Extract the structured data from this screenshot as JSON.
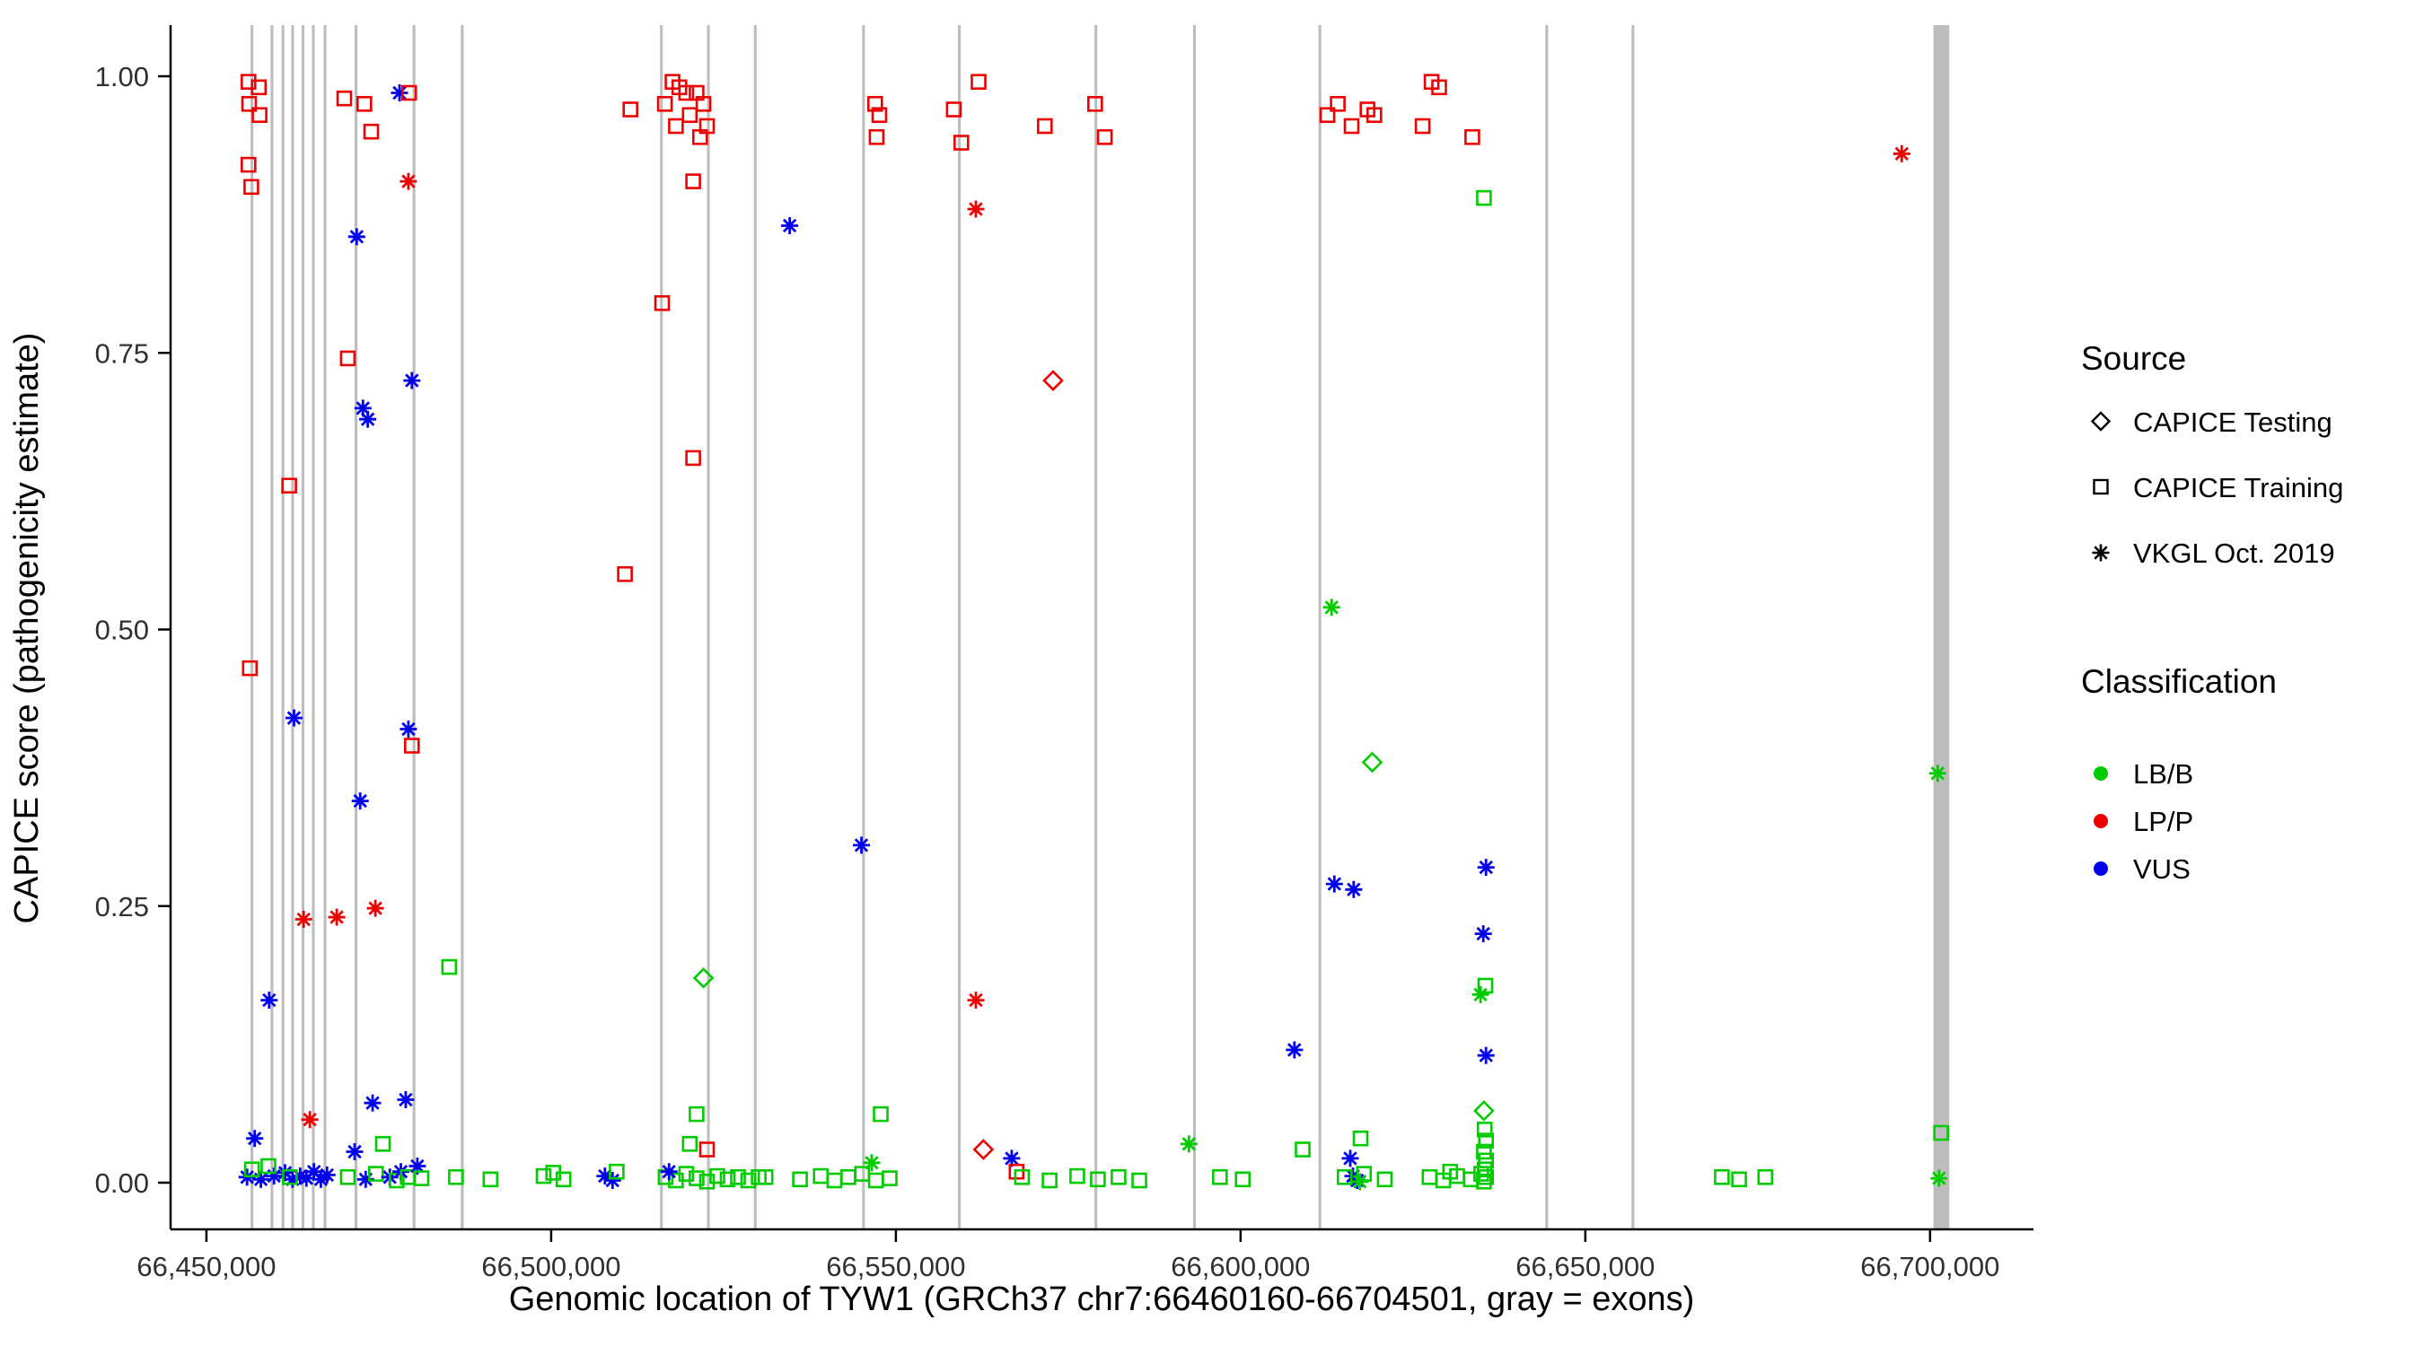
{
  "chart_data": {
    "type": "scatter",
    "title": "",
    "xlabel": "Genomic location of TYW1 (GRCh37 chr7:66460160-66704501, gray = exons)",
    "ylabel": "CAPICE score (pathogenicity estimate)",
    "xlim": [
      66444800,
      66715000
    ],
    "ylim": [
      0,
      1
    ],
    "grid": false,
    "legend_position": "right",
    "x_ticks": [
      {
        "value": 66450000,
        "label": "66,450,000"
      },
      {
        "value": 66500000,
        "label": "66,500,000"
      },
      {
        "value": 66550000,
        "label": "66,550,000"
      },
      {
        "value": 66600000,
        "label": "66,600,000"
      },
      {
        "value": 66650000,
        "label": "66,650,000"
      },
      {
        "value": 66700000,
        "label": "66,700,000"
      }
    ],
    "y_ticks": [
      {
        "value": 0.0,
        "label": "0.00"
      },
      {
        "value": 0.25,
        "label": "0.25"
      },
      {
        "value": 0.5,
        "label": "0.50"
      },
      {
        "value": 0.75,
        "label": "0.75"
      },
      {
        "value": 1.0,
        "label": "1.00"
      }
    ],
    "colors": {
      "LB/B": "#00CC00",
      "LP/P": "#EE0000",
      "VUS": "#0000EE"
    },
    "shapes": {
      "testing": "diamond",
      "training": "square",
      "vkgl": "asterisk"
    },
    "exon_color": "#BDBDBD",
    "exons": [
      [
        66456400,
        66456800
      ],
      [
        66459300,
        66459700
      ],
      [
        66460900,
        66461300
      ],
      [
        66462300,
        66462700
      ],
      [
        66463800,
        66464200
      ],
      [
        66465300,
        66465700
      ],
      [
        66467000,
        66467400
      ],
      [
        66471500,
        66471900
      ],
      [
        66479900,
        66480300
      ],
      [
        66486900,
        66487300
      ],
      [
        66515800,
        66516200
      ],
      [
        66522600,
        66523000
      ],
      [
        66529400,
        66529800
      ],
      [
        66545100,
        66545500
      ],
      [
        66559000,
        66559400
      ],
      [
        66578800,
        66579200
      ],
      [
        66593100,
        66593500
      ],
      [
        66611300,
        66611700
      ],
      [
        66644200,
        66644600
      ],
      [
        66656700,
        66657100
      ],
      [
        66700500,
        66702800
      ]
    ],
    "point_format": [
      "genomic_location",
      "capice_score",
      "source(testing|training|vkgl)",
      "classification(LB/B|LP/P|VUS)"
    ],
    "points": [
      [
        66456100,
        0.995,
        "training",
        "LP/P"
      ],
      [
        66457600,
        0.99,
        "training",
        "LP/P"
      ],
      [
        66456200,
        0.975,
        "training",
        "LP/P"
      ],
      [
        66457700,
        0.965,
        "training",
        "LP/P"
      ],
      [
        66456100,
        0.92,
        "training",
        "LP/P"
      ],
      [
        66456500,
        0.9,
        "training",
        "LP/P"
      ],
      [
        66456300,
        0.465,
        "training",
        "LP/P"
      ],
      [
        66459100,
        0.165,
        "vkgl",
        "VUS"
      ],
      [
        66462700,
        0.42,
        "vkgl",
        "VUS"
      ],
      [
        66462000,
        0.63,
        "training",
        "LP/P"
      ],
      [
        66464100,
        0.238,
        "vkgl",
        "LP/P"
      ],
      [
        66465000,
        0.057,
        "vkgl",
        "LP/P"
      ],
      [
        66457000,
        0.04,
        "vkgl",
        "VUS"
      ],
      [
        66455900,
        0.005,
        "vkgl",
        "VUS"
      ],
      [
        66457900,
        0.003,
        "vkgl",
        "VUS"
      ],
      [
        66456600,
        0.012,
        "training",
        "LB/B"
      ],
      [
        66459800,
        0.006,
        "vkgl",
        "VUS"
      ],
      [
        66461400,
        0.009,
        "vkgl",
        "VUS"
      ],
      [
        66462500,
        0.003,
        "vkgl",
        "VUS"
      ],
      [
        66463600,
        0.006,
        "vkgl",
        "VUS"
      ],
      [
        66459000,
        0.015,
        "training",
        "LB/B"
      ],
      [
        66464500,
        0.004,
        "vkgl",
        "VUS"
      ],
      [
        66465600,
        0.01,
        "vkgl",
        "VUS"
      ],
      [
        66462100,
        0.005,
        "training",
        "LB/B"
      ],
      [
        66466600,
        0.003,
        "vkgl",
        "VUS"
      ],
      [
        66467500,
        0.007,
        "vkgl",
        "VUS"
      ],
      [
        66470000,
        0.98,
        "training",
        "LP/P"
      ],
      [
        66472900,
        0.975,
        "training",
        "LP/P"
      ],
      [
        66473900,
        0.95,
        "training",
        "LP/P"
      ],
      [
        66470500,
        0.745,
        "training",
        "LP/P"
      ],
      [
        66471800,
        0.855,
        "vkgl",
        "VUS"
      ],
      [
        66472700,
        0.7,
        "vkgl",
        "VUS"
      ],
      [
        66473400,
        0.69,
        "vkgl",
        "VUS"
      ],
      [
        66472300,
        0.345,
        "vkgl",
        "VUS"
      ],
      [
        66468900,
        0.24,
        "vkgl",
        "LP/P"
      ],
      [
        66474500,
        0.248,
        "vkgl",
        "LP/P"
      ],
      [
        66474100,
        0.072,
        "vkgl",
        "VUS"
      ],
      [
        66475600,
        0.035,
        "training",
        "LB/B"
      ],
      [
        66471500,
        0.028,
        "vkgl",
        "VUS"
      ],
      [
        66470500,
        0.005,
        "training",
        "LB/B"
      ],
      [
        66473100,
        0.003,
        "vkgl",
        "VUS"
      ],
      [
        66474600,
        0.008,
        "training",
        "LB/B"
      ],
      [
        66476600,
        0.005,
        "vkgl",
        "VUS"
      ],
      [
        66477600,
        0.002,
        "training",
        "LB/B"
      ],
      [
        66478200,
        0.01,
        "vkgl",
        "VUS"
      ],
      [
        66479200,
        0.005,
        "training",
        "LB/B"
      ],
      [
        66478000,
        0.985,
        "vkgl",
        "VUS"
      ],
      [
        66479400,
        0.985,
        "training",
        "LP/P"
      ],
      [
        66479300,
        0.905,
        "vkgl",
        "LP/P"
      ],
      [
        66479800,
        0.725,
        "vkgl",
        "VUS"
      ],
      [
        66479300,
        0.41,
        "vkgl",
        "VUS"
      ],
      [
        66479800,
        0.395,
        "training",
        "LP/P"
      ],
      [
        66478900,
        0.075,
        "vkgl",
        "VUS"
      ],
      [
        66480600,
        0.015,
        "vkgl",
        "VUS"
      ],
      [
        66485200,
        0.195,
        "training",
        "LB/B"
      ],
      [
        66481200,
        0.004,
        "training",
        "LB/B"
      ],
      [
        66486200,
        0.005,
        "training",
        "LB/B"
      ],
      [
        66491200,
        0.003,
        "training",
        "LB/B"
      ],
      [
        66498900,
        0.006,
        "training",
        "LB/B"
      ],
      [
        66500300,
        0.009,
        "training",
        "LB/B"
      ],
      [
        66501800,
        0.003,
        "training",
        "LB/B"
      ],
      [
        66507800,
        0.006,
        "vkgl",
        "VUS"
      ],
      [
        66508900,
        0.002,
        "vkgl",
        "VUS"
      ],
      [
        66509500,
        0.01,
        "training",
        "LB/B"
      ],
      [
        66510700,
        0.55,
        "training",
        "LP/P"
      ],
      [
        66511500,
        0.97,
        "training",
        "LP/P"
      ],
      [
        66516500,
        0.975,
        "training",
        "LP/P"
      ],
      [
        66517600,
        0.995,
        "training",
        "LP/P"
      ],
      [
        66518600,
        0.99,
        "training",
        "LP/P"
      ],
      [
        66519600,
        0.985,
        "training",
        "LP/P"
      ],
      [
        66520100,
        0.965,
        "training",
        "LP/P"
      ],
      [
        66518100,
        0.955,
        "training",
        "LP/P"
      ],
      [
        66521100,
        0.985,
        "training",
        "LP/P"
      ],
      [
        66522100,
        0.975,
        "training",
        "LP/P"
      ],
      [
        66522600,
        0.955,
        "training",
        "LP/P"
      ],
      [
        66521600,
        0.945,
        "training",
        "LP/P"
      ],
      [
        66520600,
        0.905,
        "training",
        "LP/P"
      ],
      [
        66516100,
        0.795,
        "training",
        "LP/P"
      ],
      [
        66520600,
        0.655,
        "training",
        "LP/P"
      ],
      [
        66522100,
        0.185,
        "testing",
        "LB/B"
      ],
      [
        66521100,
        0.062,
        "training",
        "LB/B"
      ],
      [
        66522600,
        0.03,
        "training",
        "LP/P"
      ],
      [
        66520100,
        0.035,
        "training",
        "LB/B"
      ],
      [
        66516600,
        0.005,
        "training",
        "LB/B"
      ],
      [
        66518100,
        0.002,
        "training",
        "LB/B"
      ],
      [
        66519600,
        0.008,
        "training",
        "LB/B"
      ],
      [
        66521100,
        0.004,
        "training",
        "LB/B"
      ],
      [
        66522600,
        0.001,
        "training",
        "LB/B"
      ],
      [
        66524100,
        0.006,
        "training",
        "LB/B"
      ],
      [
        66525600,
        0.003,
        "training",
        "LB/B"
      ],
      [
        66527100,
        0.005,
        "training",
        "LB/B"
      ],
      [
        66528600,
        0.002,
        "training",
        "LB/B"
      ],
      [
        66530100,
        0.005,
        "training",
        "LB/B"
      ],
      [
        66517100,
        0.01,
        "vkgl",
        "VUS"
      ],
      [
        66534600,
        0.865,
        "vkgl",
        "VUS"
      ],
      [
        66531100,
        0.005,
        "training",
        "LB/B"
      ],
      [
        66536100,
        0.003,
        "training",
        "LB/B"
      ],
      [
        66539100,
        0.006,
        "training",
        "LB/B"
      ],
      [
        66541100,
        0.002,
        "training",
        "LB/B"
      ],
      [
        66543100,
        0.005,
        "training",
        "LB/B"
      ],
      [
        66545100,
        0.008,
        "training",
        "LB/B"
      ],
      [
        66547100,
        0.002,
        "training",
        "LB/B"
      ],
      [
        66549100,
        0.004,
        "training",
        "LB/B"
      ],
      [
        66545000,
        0.305,
        "vkgl",
        "VUS"
      ],
      [
        66547000,
        0.975,
        "training",
        "LP/P"
      ],
      [
        66547600,
        0.965,
        "training",
        "LP/P"
      ],
      [
        66547200,
        0.945,
        "training",
        "LP/P"
      ],
      [
        66547800,
        0.062,
        "training",
        "LB/B"
      ],
      [
        66546500,
        0.018,
        "vkgl",
        "LB/B"
      ],
      [
        66558400,
        0.97,
        "training",
        "LP/P"
      ],
      [
        66562000,
        0.995,
        "training",
        "LP/P"
      ],
      [
        66559500,
        0.94,
        "training",
        "LP/P"
      ],
      [
        66561600,
        0.88,
        "vkgl",
        "LP/P"
      ],
      [
        66561600,
        0.165,
        "vkgl",
        "LP/P"
      ],
      [
        66562700,
        0.03,
        "testing",
        "LP/P"
      ],
      [
        66566800,
        0.022,
        "vkgl",
        "VUS"
      ],
      [
        66567500,
        0.01,
        "training",
        "LP/P"
      ],
      [
        66571600,
        0.955,
        "training",
        "LP/P"
      ],
      [
        66572800,
        0.725,
        "testing",
        "LP/P"
      ],
      [
        66578900,
        0.975,
        "training",
        "LP/P"
      ],
      [
        66580300,
        0.945,
        "training",
        "LP/P"
      ],
      [
        66568300,
        0.005,
        "training",
        "LB/B"
      ],
      [
        66572300,
        0.002,
        "training",
        "LB/B"
      ],
      [
        66576300,
        0.006,
        "training",
        "LB/B"
      ],
      [
        66579300,
        0.003,
        "training",
        "LB/B"
      ],
      [
        66582300,
        0.005,
        "training",
        "LB/B"
      ],
      [
        66585300,
        0.002,
        "training",
        "LB/B"
      ],
      [
        66592500,
        0.035,
        "vkgl",
        "LB/B"
      ],
      [
        66597000,
        0.005,
        "training",
        "LB/B"
      ],
      [
        66600300,
        0.003,
        "training",
        "LB/B"
      ],
      [
        66612600,
        0.965,
        "training",
        "LP/P"
      ],
      [
        66614100,
        0.975,
        "training",
        "LP/P"
      ],
      [
        66616100,
        0.955,
        "training",
        "LP/P"
      ],
      [
        66618400,
        0.97,
        "training",
        "LP/P"
      ],
      [
        66619400,
        0.965,
        "training",
        "LP/P"
      ],
      [
        66613200,
        0.52,
        "vkgl",
        "LB/B"
      ],
      [
        66613600,
        0.27,
        "vkgl",
        "VUS"
      ],
      [
        66616400,
        0.265,
        "vkgl",
        "VUS"
      ],
      [
        66607800,
        0.12,
        "vkgl",
        "VUS"
      ],
      [
        66619100,
        0.38,
        "testing",
        "LB/B"
      ],
      [
        66609000,
        0.03,
        "training",
        "LB/B"
      ],
      [
        66617400,
        0.04,
        "training",
        "LB/B"
      ],
      [
        66615900,
        0.022,
        "vkgl",
        "VUS"
      ],
      [
        66616300,
        0.006,
        "vkgl",
        "VUS"
      ],
      [
        66616900,
        0.002,
        "vkgl",
        "VUS"
      ],
      [
        66615100,
        0.005,
        "training",
        "LB/B"
      ],
      [
        66617900,
        0.008,
        "training",
        "LB/B"
      ],
      [
        66617300,
        0.001,
        "vkgl",
        "LB/B"
      ],
      [
        66620900,
        0.003,
        "training",
        "LB/B"
      ],
      [
        66627700,
        0.995,
        "training",
        "LP/P"
      ],
      [
        66628800,
        0.99,
        "training",
        "LP/P"
      ],
      [
        66626400,
        0.955,
        "training",
        "LP/P"
      ],
      [
        66633600,
        0.945,
        "training",
        "LP/P"
      ],
      [
        66635300,
        0.89,
        "training",
        "LB/B"
      ],
      [
        66635600,
        0.285,
        "vkgl",
        "VUS"
      ],
      [
        66635200,
        0.225,
        "vkgl",
        "VUS"
      ],
      [
        66634800,
        0.17,
        "vkgl",
        "LB/B"
      ],
      [
        66635500,
        0.178,
        "training",
        "LB/B"
      ],
      [
        66635600,
        0.115,
        "vkgl",
        "VUS"
      ],
      [
        66635300,
        0.065,
        "testing",
        "LB/B"
      ],
      [
        66635400,
        0.048,
        "training",
        "LB/B"
      ],
      [
        66635600,
        0.038,
        "training",
        "LB/B"
      ],
      [
        66635300,
        0.028,
        "training",
        "LB/B"
      ],
      [
        66635600,
        0.02,
        "training",
        "LB/B"
      ],
      [
        66635400,
        0.012,
        "training",
        "LB/B"
      ],
      [
        66635600,
        0.005,
        "training",
        "LB/B"
      ],
      [
        66635300,
        0.001,
        "training",
        "LB/B"
      ],
      [
        66627400,
        0.005,
        "training",
        "LB/B"
      ],
      [
        66629400,
        0.002,
        "training",
        "LB/B"
      ],
      [
        66631400,
        0.006,
        "training",
        "LB/B"
      ],
      [
        66633400,
        0.003,
        "training",
        "LB/B"
      ],
      [
        66634900,
        0.008,
        "training",
        "LB/B"
      ],
      [
        66630400,
        0.01,
        "training",
        "LB/B"
      ],
      [
        66669800,
        0.005,
        "training",
        "LB/B"
      ],
      [
        66672300,
        0.003,
        "training",
        "LB/B"
      ],
      [
        66676100,
        0.005,
        "training",
        "LB/B"
      ],
      [
        66695900,
        0.93,
        "vkgl",
        "LP/P"
      ],
      [
        66701100,
        0.37,
        "vkgl",
        "LB/B"
      ],
      [
        66701600,
        0.045,
        "training",
        "LB/B"
      ],
      [
        66701300,
        0.004,
        "vkgl",
        "LB/B"
      ]
    ]
  },
  "legend": {
    "source": {
      "title": "Source",
      "items": [
        {
          "label": "CAPICE Testing",
          "code": "testing",
          "shape": "diamond"
        },
        {
          "label": "CAPICE Training",
          "code": "training",
          "shape": "square"
        },
        {
          "label": "VKGL Oct. 2019",
          "code": "vkgl",
          "shape": "asterisk"
        }
      ]
    },
    "classification": {
      "title": "Classification",
      "items": [
        {
          "label": "LB/B",
          "color": "#00CC00"
        },
        {
          "label": "LP/P",
          "color": "#EE0000"
        },
        {
          "label": "VUS",
          "color": "#0000EE"
        }
      ]
    }
  }
}
